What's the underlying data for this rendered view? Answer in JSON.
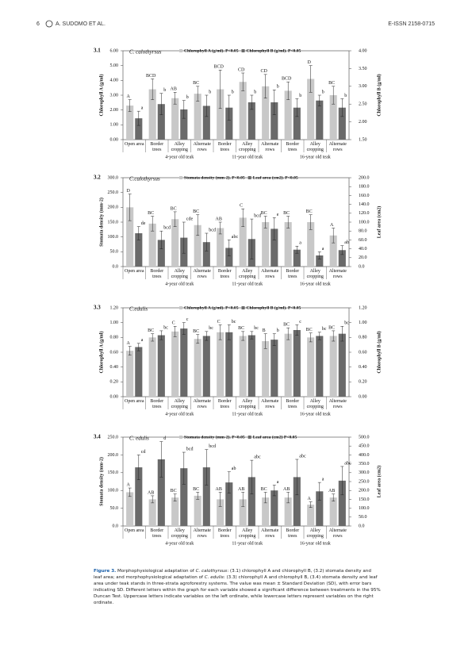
{
  "header": {
    "page": "6",
    "authors": "A. SUDOMO ET AL.",
    "issn": "E-ISSN 2158-0715"
  },
  "chart_data": [
    {
      "type": "bar",
      "label": "3.1",
      "title": "C. calothyrsus",
      "y_label": "Chlorophyll A (g/ml)",
      "y2_label": "Chlorophyll B (g/ml)",
      "categories": [
        "Open area",
        "Border trees",
        "Alley cropping",
        "Alternate rows",
        "Border trees",
        "Alley cropping",
        "Alternate rows",
        "Border trees",
        "Alley cropping",
        "Alternate rows"
      ],
      "groups": [
        "4-year old teak",
        "11-year old teak",
        "16-year old teak"
      ],
      "ylim": [
        0,
        6
      ],
      "yticks": [
        {
          "value": 0,
          "label": "0.00"
        },
        {
          "value": 1,
          "label": "1.00"
        },
        {
          "value": 2,
          "label": "2.00"
        },
        {
          "value": 3,
          "label": "3.00"
        },
        {
          "value": 4,
          "label": "4.00"
        },
        {
          "value": 5,
          "label": "5.00"
        },
        {
          "value": 6,
          "label": "6.00"
        }
      ],
      "y2lim": [
        1.5,
        4
      ],
      "y2ticks": [
        {
          "value": 1.5,
          "label": "1.50"
        },
        {
          "value": 2,
          "label": "2.00"
        },
        {
          "value": 2.5,
          "label": "2.50"
        },
        {
          "value": 3,
          "label": "3.00"
        },
        {
          "value": 3.5,
          "label": "3.50"
        },
        {
          "value": 4,
          "label": "4.00"
        }
      ],
      "series": [
        {
          "name": "Chlorophyll A (g/ml). P<0.05",
          "color": "#c8c8c8",
          "values": [
            2.3,
            3.4,
            2.8,
            3.1,
            3.4,
            3.9,
            3.6,
            3.3,
            4.1,
            3.0
          ],
          "errors": [
            0.4,
            0.7,
            0.4,
            0.5,
            1.3,
            0.6,
            0.8,
            0.6,
            0.9,
            0.6
          ],
          "letters": [
            "A",
            "BCD",
            "AB",
            "BC",
            "BCD",
            "CD",
            "CD",
            "BCD",
            "D",
            "BC"
          ]
        },
        {
          "name": "Chlorophyll B (g/ml). P<0.05",
          "color": "#6a6a6a",
          "axis": "y2",
          "values": [
            2.1,
            2.5,
            2.35,
            2.45,
            2.4,
            2.55,
            2.55,
            2.4,
            2.6,
            2.4
          ],
          "errors": [
            0.2,
            0.3,
            0.25,
            0.3,
            0.35,
            0.2,
            0.35,
            0.25,
            0.15,
            0.25
          ],
          "letters": [
            "a",
            "b",
            "b",
            "b",
            "b",
            "b",
            "b",
            "b",
            "b",
            "b"
          ]
        }
      ]
    },
    {
      "type": "bar",
      "label": "3.2",
      "title": "C.calothyrsus",
      "y_label": "Stomata density (mm-2)",
      "y2_label": "Leaf area (cm2)",
      "categories": [
        "Open area",
        "Border trees",
        "Alley cropping",
        "Alternate rows",
        "Border trees",
        "Alley cropping",
        "Alternate rows",
        "Border trees",
        "Alley cropping",
        "Alternate rows"
      ],
      "groups": [
        "4-year old teak",
        "11-year old teak",
        "16-year old teak"
      ],
      "ylim": [
        0,
        300
      ],
      "yticks": [
        {
          "value": 0,
          "label": "0.0"
        },
        {
          "value": 50,
          "label": "50.0"
        },
        {
          "value": 100,
          "label": "100.0"
        },
        {
          "value": 150,
          "label": "150.0"
        },
        {
          "value": 200,
          "label": "200.0"
        },
        {
          "value": 250,
          "label": "250.0"
        },
        {
          "value": 300,
          "label": "300.0"
        }
      ],
      "y2lim": [
        0,
        200
      ],
      "y2ticks": [
        {
          "value": 0,
          "label": "0.0"
        },
        {
          "value": 20,
          "label": "20.0"
        },
        {
          "value": 40,
          "label": "40.0"
        },
        {
          "value": 60,
          "label": "60.0"
        },
        {
          "value": 80,
          "label": "80.0"
        },
        {
          "value": 100,
          "label": "100.0"
        },
        {
          "value": 120,
          "label": "120.0"
        },
        {
          "value": 140,
          "label": "140.0"
        },
        {
          "value": 160,
          "label": "160.0"
        },
        {
          "value": 180,
          "label": "180.0"
        },
        {
          "value": 200,
          "label": "200.0"
        }
      ],
      "series": [
        {
          "name": "Stomata density (mm-2). P<0.05",
          "color": "#c8c8c8",
          "values": [
            200,
            145,
            160,
            140,
            130,
            165,
            150,
            150,
            150,
            105
          ],
          "errors": [
            45,
            25,
            25,
            35,
            20,
            30,
            20,
            20,
            25,
            25
          ],
          "letters": [
            "D",
            "BC",
            "BC",
            "BC",
            "AB",
            "C",
            "BC",
            "BC",
            "BC",
            "A"
          ]
        },
        {
          "name": "Leaf area (cm2). P<0.05",
          "color": "#6a6a6a",
          "axis": "y2",
          "values": [
            75,
            60,
            65,
            55,
            42,
            62,
            85,
            38,
            25,
            37
          ],
          "errors": [
            15,
            20,
            35,
            20,
            18,
            45,
            25,
            8,
            8,
            10
          ],
          "letters": [
            "de",
            "bcd",
            "cde",
            "bcd",
            "abc",
            "bcd",
            "e",
            "a",
            "a",
            "ab"
          ]
        }
      ]
    },
    {
      "type": "bar",
      "label": "3.3",
      "title": "C.edulis",
      "y_label": "Chlorophyll A (g/ml)",
      "y2_label": "Chlorophyll B (g/ml)",
      "categories": [
        "Open area",
        "Border trees",
        "Alley cropping",
        "Alternate rows",
        "Border trees",
        "Alley cropping",
        "Alternate rows",
        "Border trees",
        "Alley cropping",
        "Alternate rows"
      ],
      "groups": [
        "4-year old teak",
        "11-year old teak",
        "16-year old teak"
      ],
      "ylim": [
        0,
        1.2
      ],
      "yticks": [
        {
          "value": 0,
          "label": "0.00"
        },
        {
          "value": 0.2,
          "label": "0.20"
        },
        {
          "value": 0.4,
          "label": "0.40"
        },
        {
          "value": 0.6,
          "label": "0.60"
        },
        {
          "value": 0.8,
          "label": "0.80"
        },
        {
          "value": 1,
          "label": "1.00"
        },
        {
          "value": 1.2,
          "label": "1.20"
        }
      ],
      "y2lim": [
        0,
        1.2
      ],
      "y2ticks": [
        {
          "value": 0,
          "label": "0.00"
        },
        {
          "value": 0.2,
          "label": "0.20"
        },
        {
          "value": 0.4,
          "label": "0.40"
        },
        {
          "value": 0.6,
          "label": "0.60"
        },
        {
          "value": 0.8,
          "label": "0.80"
        },
        {
          "value": 1,
          "label": "1.00"
        },
        {
          "value": 1.2,
          "label": "1.20"
        }
      ],
      "series": [
        {
          "name": "Chlorophyll A (g/ml). P<0.05",
          "color": "#c8c8c8",
          "values": [
            0.62,
            0.8,
            0.88,
            0.78,
            0.87,
            0.82,
            0.75,
            0.85,
            0.8,
            0.82
          ],
          "errors": [
            0.06,
            0.05,
            0.07,
            0.06,
            0.1,
            0.06,
            0.1,
            0.08,
            0.06,
            0.07
          ],
          "letters": [
            "A",
            "BC",
            "C",
            "BC",
            "C",
            "BC",
            "B",
            "BC",
            "BC",
            "BC"
          ]
        },
        {
          "name": "Chlorophyll B (g/ml). P<0.05",
          "color": "#6a6a6a",
          "axis": "y2",
          "values": [
            0.67,
            0.83,
            0.92,
            0.82,
            0.87,
            0.83,
            0.77,
            0.9,
            0.82,
            0.85
          ],
          "errors": [
            0.05,
            0.06,
            0.08,
            0.06,
            0.1,
            0.05,
            0.08,
            0.07,
            0.05,
            0.1
          ],
          "letters": [
            "a",
            "bc",
            "c",
            "bc",
            "bc",
            "bc",
            "b",
            "c",
            "bc",
            "bc"
          ]
        }
      ]
    },
    {
      "type": "bar",
      "label": "3.4",
      "title": "C. edulis",
      "y_label": "Stomata density (mm-2)",
      "y2_label": "Leaf area (cm2)",
      "categories": [
        "Open area",
        "Border trees",
        "Alley cropping",
        "Alternate rows",
        "Border trees",
        "Alley cropping",
        "Alternate rows",
        "Border trees",
        "Alley cropping",
        "Alternate rows"
      ],
      "groups": [
        "4-year old teak",
        "11-year old teak",
        "16-year old teak"
      ],
      "ylim": [
        0,
        250
      ],
      "yticks": [
        {
          "value": 0,
          "label": "0.0"
        },
        {
          "value": 50,
          "label": "50.0"
        },
        {
          "value": 100,
          "label": "100.0"
        },
        {
          "value": 150,
          "label": "150.0"
        },
        {
          "value": 200,
          "label": "200.0"
        },
        {
          "value": 250,
          "label": "250.0"
        }
      ],
      "y2lim": [
        0,
        500
      ],
      "y2ticks": [
        {
          "value": 0,
          "label": "0.0"
        },
        {
          "value": 50,
          "label": "50.0"
        },
        {
          "value": 100,
          "label": "100.0"
        },
        {
          "value": 150,
          "label": "150.0"
        },
        {
          "value": 200,
          "label": "200.0"
        },
        {
          "value": 250,
          "label": "250.0"
        },
        {
          "value": 300,
          "label": "300.0"
        },
        {
          "value": 350,
          "label": "350.0"
        },
        {
          "value": 400,
          "label": "400.0"
        },
        {
          "value": 450,
          "label": "450.0"
        },
        {
          "value": 500,
          "label": "500.0"
        }
      ],
      "series": [
        {
          "name": "Stomata density (mm-2). P<0.05",
          "color": "#c8c8c8",
          "values": [
            95,
            75,
            80,
            85,
            75,
            75,
            80,
            80,
            60,
            80
          ],
          "errors": [
            12,
            10,
            10,
            10,
            20,
            20,
            15,
            15,
            8,
            10
          ],
          "letters": [
            "A",
            "AB",
            "BC",
            "BC",
            "AB",
            "AB",
            "BC",
            "AB",
            "A",
            "AB"
          ]
        },
        {
          "name": "Leaf area (cm2) P<0.05",
          "color": "#6a6a6a",
          "axis": "y2",
          "values": [
            330,
            375,
            325,
            330,
            245,
            275,
            200,
            275,
            195,
            255
          ],
          "errors": [
            70,
            100,
            90,
            100,
            60,
            95,
            30,
            100,
            50,
            80
          ],
          "letters": [
            "cd",
            "d",
            "bcd",
            "bcd",
            "ab",
            "abc",
            "a",
            "abc",
            "a",
            "abc"
          ]
        }
      ]
    }
  ],
  "caption": {
    "label": "Figure 3.",
    "parts": [
      "Morphophysiological adaptation of ",
      "C. calothyrsus",
      ": (3.1) chlorophyll A and chlorophyll B, (3.2) stomata density and leaf area; and morphophysiological adaptation of ",
      "C. edulis",
      ": (3.3) chlorophyll A and chlorophyll B, (3.4) stomata density and leaf area under teak stands in three-strata agroforestry systems. The value was mean ± Standard Deviation (SD), with error bars indicating SD. Different letters within the graph for each variable showed a significant difference between treatments in the 95% Duncan Test. Uppercase letters indicate variables on the left ordinate, while lowercase letters represent variables on the right ordinate."
    ]
  }
}
